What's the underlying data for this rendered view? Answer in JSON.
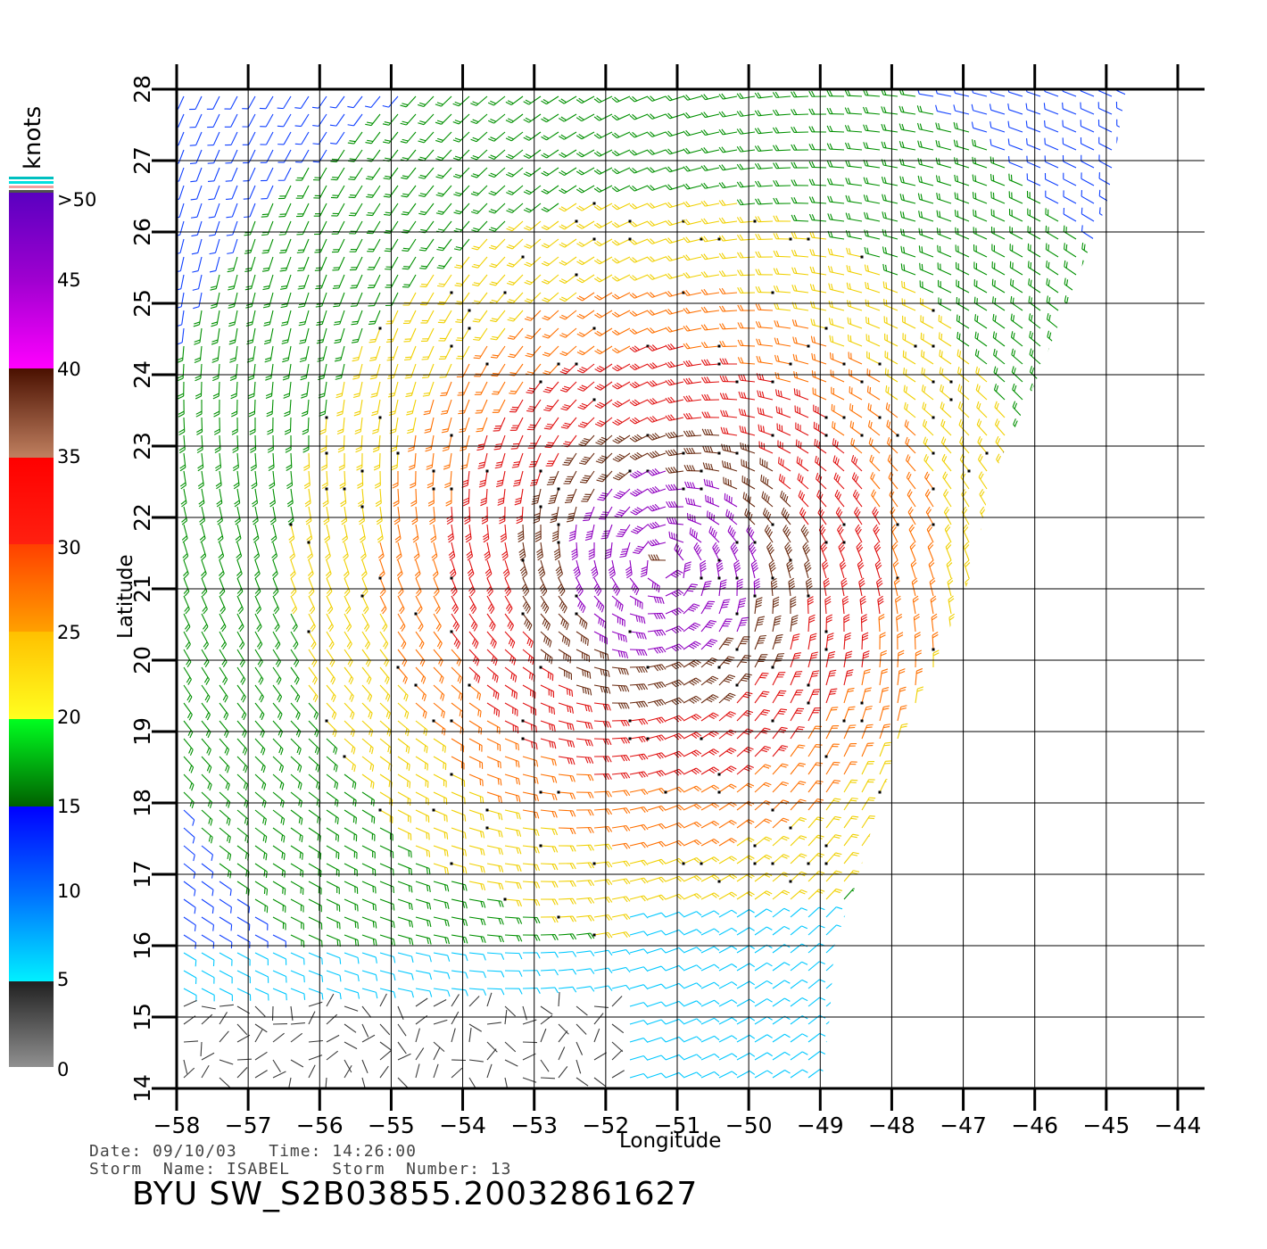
{
  "map": {
    "lon_range": [
      -58,
      -44
    ],
    "lat_range": [
      14,
      28
    ],
    "lon_ticks": [
      "−58",
      "−57",
      "−56",
      "−55",
      "−54",
      "−53",
      "−52",
      "−51",
      "−50",
      "−49",
      "−48",
      "−47",
      "−46",
      "−45",
      "−44"
    ],
    "lat_ticks": [
      "14",
      "15",
      "16",
      "17",
      "18",
      "19",
      "20",
      "21",
      "22",
      "23",
      "24",
      "25",
      "26",
      "27",
      "28"
    ],
    "xlabel": "Longitude",
    "ylabel": "Latitude",
    "storm_center": {
      "lon": -51.2,
      "lat": 21.3
    },
    "grid": true
  },
  "legend": {
    "units": "knots",
    "labels": [
      ">50",
      "45",
      "40",
      "35",
      "30",
      "25",
      "20",
      "15",
      "10",
      "5",
      "0"
    ],
    "colors": {
      "calm": "#3a3a3a",
      "light": "#00c8ff",
      "moderate": "#1040ff",
      "fresh": "#009000",
      "strong": "#f0d000",
      "gale": "#ff7000",
      "storm": "#e01010",
      "severe": "#6a2a10",
      "extreme": "#9000c0"
    }
  },
  "meta": {
    "date_line": "Date: 09/10/03   Time: 14:26:00",
    "storm_line": "Storm  Name: ISABEL    Storm  Number: 13",
    "title": "BYU  SW_S2B03855.20032861627"
  }
}
